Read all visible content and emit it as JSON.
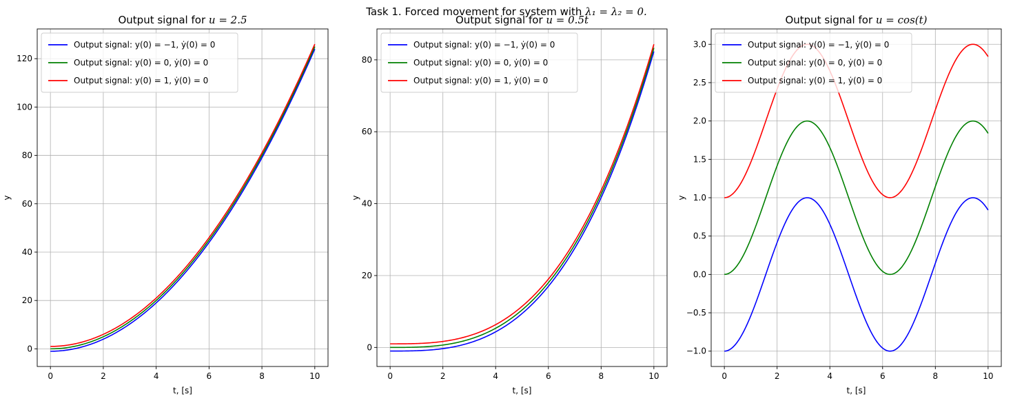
{
  "figure": {
    "suptitle_text": "Task 1. Forced movement for system with ",
    "suptitle_math": "λ₁ = λ₂ = 0."
  },
  "colors": {
    "blue": "#0000ff",
    "green": "#008000",
    "red": "#ff0000",
    "grid": "#b0b0b0"
  },
  "chart_data": [
    {
      "type": "line",
      "title": "Output signal for u = 2.5",
      "title_plain": "Output signal for ",
      "title_math": "u = 2.5",
      "xlabel": "t, [s]",
      "ylabel": "y",
      "xlim": [
        -0.5,
        10.5
      ],
      "ylim": [
        -7.3,
        132.3
      ],
      "xticks": [
        0,
        2,
        4,
        6,
        8,
        10
      ],
      "yticks": [
        0,
        20,
        40,
        60,
        80,
        100,
        120
      ],
      "grid": true,
      "legend_position": "top-left",
      "x": [
        0,
        1,
        2,
        3,
        4,
        5,
        6,
        7,
        8,
        9,
        10
      ],
      "series": [
        {
          "name": "Output signal: y(0) = −1, ẏ(0) = 0",
          "color": "blue",
          "values": [
            -1,
            0.25,
            4.0,
            10.25,
            19.0,
            30.25,
            44.0,
            60.25,
            79.0,
            100.25,
            124.0
          ]
        },
        {
          "name": "Output signal: y(0) = 0, ẏ(0) = 0",
          "color": "green",
          "values": [
            0,
            1.25,
            5.0,
            11.25,
            20.0,
            31.25,
            45.0,
            61.25,
            80.0,
            101.25,
            125.0
          ]
        },
        {
          "name": "Output signal: y(0) = 1, ẏ(0) = 0",
          "color": "red",
          "values": [
            1,
            2.25,
            6.0,
            12.25,
            21.0,
            32.25,
            46.0,
            62.25,
            81.0,
            102.25,
            126.0
          ]
        }
      ]
    },
    {
      "type": "line",
      "title": "Output signal for u = 0.5t",
      "title_plain": "Output signal for ",
      "title_math": "u = 0.5t",
      "xlabel": "t, [s]",
      "ylabel": "y",
      "xlim": [
        -0.5,
        10.5
      ],
      "ylim": [
        -5.3,
        88.6
      ],
      "xticks": [
        0,
        2,
        4,
        6,
        8,
        10
      ],
      "yticks": [
        0,
        20,
        40,
        60,
        80
      ],
      "grid": true,
      "legend_position": "top-left",
      "x": [
        0,
        1,
        2,
        3,
        4,
        5,
        6,
        7,
        8,
        9,
        10
      ],
      "series": [
        {
          "name": "Output signal: y(0) = −1, ẏ(0) = 0",
          "color": "blue",
          "values": [
            -1,
            -0.917,
            -0.333,
            1.25,
            4.333,
            9.417,
            17.0,
            27.583,
            41.667,
            59.75,
            82.333
          ]
        },
        {
          "name": "Output signal: y(0) = 0, ẏ(0) = 0",
          "color": "green",
          "values": [
            0,
            0.083,
            0.667,
            2.25,
            5.333,
            10.417,
            18.0,
            28.583,
            42.667,
            60.75,
            83.333
          ]
        },
        {
          "name": "Output signal: y(0) = 1, ẏ(0) = 0",
          "color": "red",
          "values": [
            1,
            1.083,
            1.667,
            3.25,
            6.333,
            11.417,
            19.0,
            29.583,
            43.667,
            61.75,
            84.333
          ]
        }
      ]
    },
    {
      "type": "line",
      "title": "Output signal for u = cos(t)",
      "title_plain": "Output signal for ",
      "title_math": "u = cos(t)",
      "xlabel": "t, [s]",
      "ylabel": "y",
      "xlim": [
        -0.5,
        10.5
      ],
      "ylim": [
        -1.2,
        3.2
      ],
      "xticks": [
        0,
        2,
        4,
        6,
        8,
        10
      ],
      "yticks": [
        -1.0,
        -0.5,
        0.0,
        0.5,
        1.0,
        1.5,
        2.0,
        2.5,
        3.0
      ],
      "ytick_labels": [
        "−1.0",
        "−0.5",
        "0.0",
        "0.5",
        "1.0",
        "1.5",
        "2.0",
        "2.5",
        "3.0"
      ],
      "grid": true,
      "legend_position": "top-left",
      "x": [
        0,
        1,
        2,
        3,
        4,
        5,
        6,
        7,
        8,
        9,
        10
      ],
      "series": [
        {
          "name": "Output signal: y(0) = −1, ẏ(0) = 0",
          "color": "blue",
          "values": [
            -1,
            -0.54,
            0.416,
            0.99,
            0.654,
            -0.284,
            -0.96,
            -0.754,
            0.146,
            0.911,
            0.839
          ]
        },
        {
          "name": "Output signal: y(0) = 0, ẏ(0) = 0",
          "color": "green",
          "values": [
            0,
            0.46,
            1.416,
            1.99,
            1.654,
            0.716,
            0.04,
            0.246,
            1.146,
            1.911,
            1.839
          ]
        },
        {
          "name": "Output signal: y(0) = 1, ẏ(0) = 0",
          "color": "red",
          "values": [
            1,
            1.46,
            2.416,
            2.99,
            2.654,
            1.716,
            1.04,
            1.246,
            2.146,
            2.911,
            2.839
          ]
        }
      ]
    }
  ]
}
